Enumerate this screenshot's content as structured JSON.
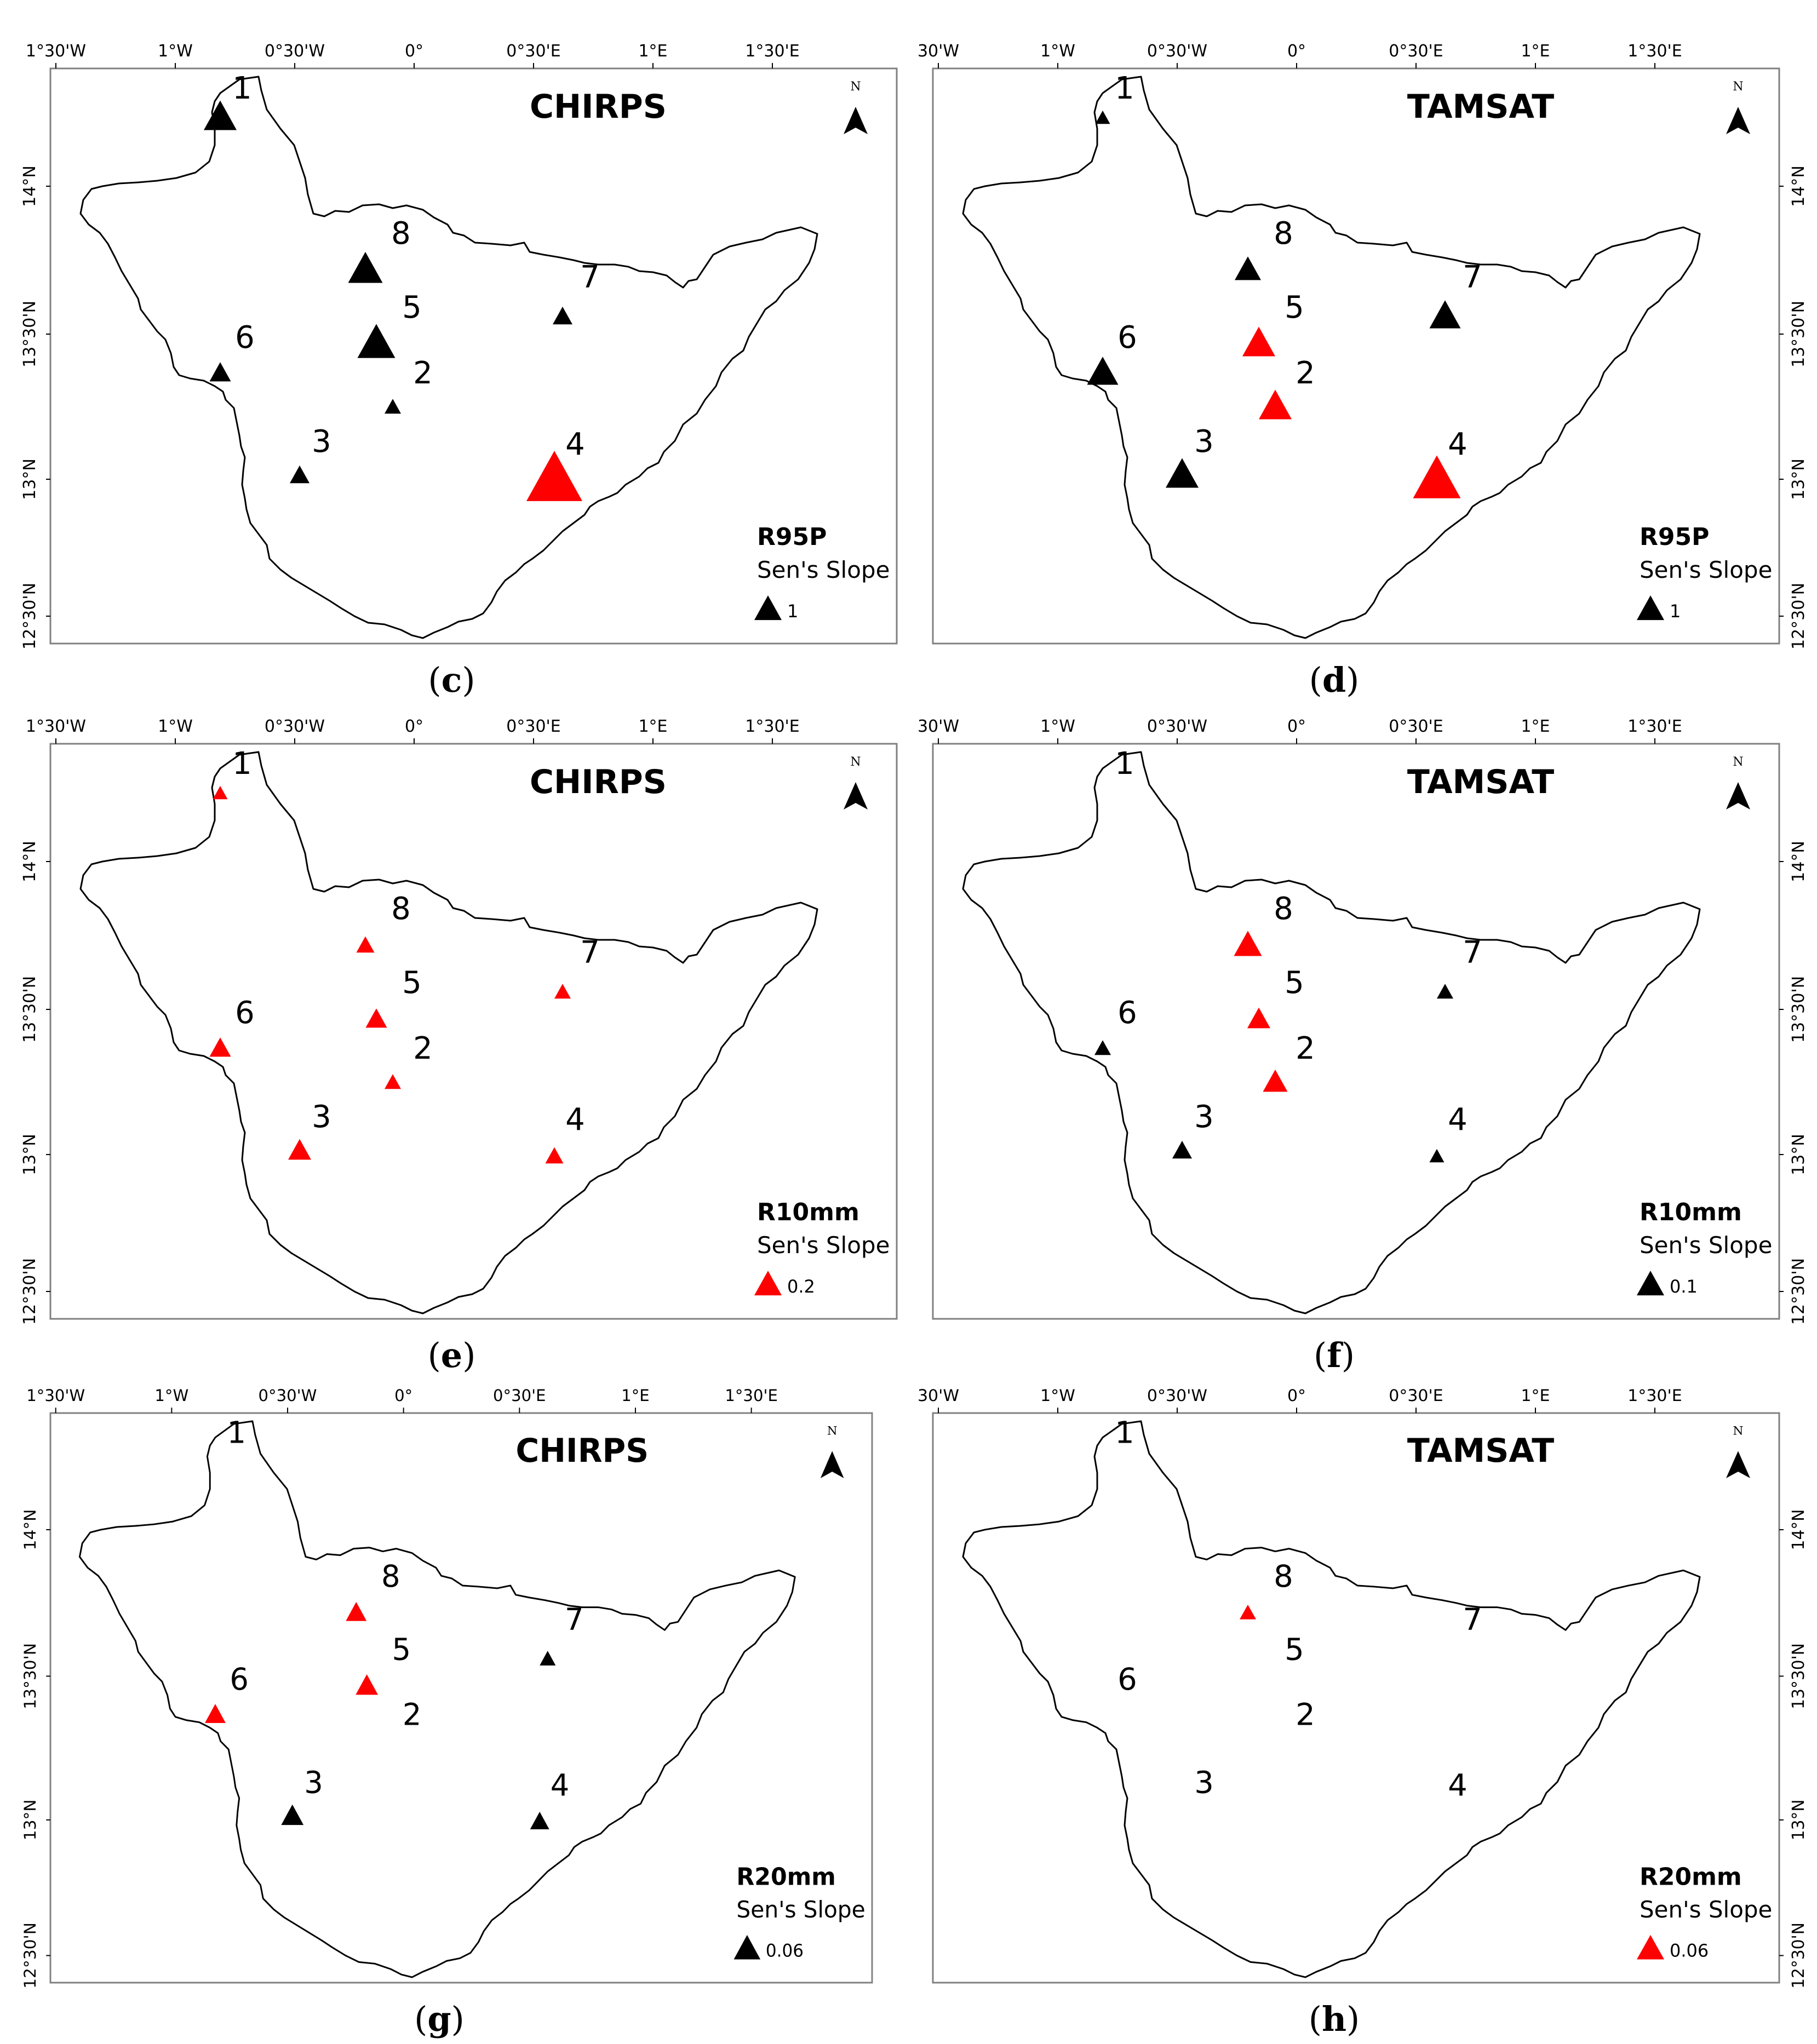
{
  "figure": {
    "legend_subtitle": "Sen's Slope",
    "north_label": "N",
    "colors": {
      "positive_trend": "#ff0000",
      "negative_trend": "#000000",
      "boundary": "#000000",
      "frame": "#808080"
    },
    "panels": [
      {
        "id": "c",
        "caption": "c",
        "dataset": "CHIRPS",
        "index": "R95P",
        "legend_value": "1",
        "legend_color": "#000000",
        "x_ticks": [
          "1°30'W",
          "1°W",
          "0°30'W",
          "0°",
          "0°30'E",
          "1°E",
          "1°30'E"
        ],
        "y_ticks": [
          "14°N",
          "13°30'N",
          "13°N",
          "12°30'N"
        ],
        "y_ticks_side": "left",
        "stations": [
          {
            "id": "1",
            "color": "#000000",
            "size": 1.0
          },
          {
            "id": "8",
            "color": "#000000",
            "size": 1.05
          },
          {
            "id": "7",
            "color": "#000000",
            "size": 0.6
          },
          {
            "id": "5",
            "color": "#000000",
            "size": 1.15
          },
          {
            "id": "6",
            "color": "#000000",
            "size": 0.65
          },
          {
            "id": "2",
            "color": "#000000",
            "size": 0.5
          },
          {
            "id": "3",
            "color": "#000000",
            "size": 0.6
          },
          {
            "id": "4",
            "color": "#ff0000",
            "size": 1.7
          }
        ]
      },
      {
        "id": "d",
        "caption": "d",
        "dataset": "TAMSAT",
        "index": "R95P",
        "legend_value": "1",
        "legend_color": "#000000",
        "x_ticks": [
          "30'W",
          "1°W",
          "0°30'W",
          "0°",
          "0°30'E",
          "1°E",
          "1°30'E"
        ],
        "y_ticks": [
          "14°N",
          "13°30'N",
          "13°N",
          "12°30'N"
        ],
        "y_ticks_side": "right",
        "stations": [
          {
            "id": "1",
            "color": "#000000",
            "size": 0.45
          },
          {
            "id": "8",
            "color": "#000000",
            "size": 0.8
          },
          {
            "id": "7",
            "color": "#000000",
            "size": 0.95
          },
          {
            "id": "5",
            "color": "#ff0000",
            "size": 1.0
          },
          {
            "id": "6",
            "color": "#000000",
            "size": 0.95
          },
          {
            "id": "2",
            "color": "#ff0000",
            "size": 1.0
          },
          {
            "id": "3",
            "color": "#000000",
            "size": 1.0
          },
          {
            "id": "4",
            "color": "#ff0000",
            "size": 1.45
          }
        ]
      },
      {
        "id": "e",
        "caption": "e",
        "dataset": "CHIRPS",
        "index": "R10mm",
        "legend_value": "0.2",
        "legend_color": "#ff0000",
        "x_ticks": [
          "1°30'W",
          "1°W",
          "0°30'W",
          "0°",
          "0°30'E",
          "1°E",
          "1°30'E"
        ],
        "y_ticks": [
          "14°N",
          "13°30'N",
          "13°N",
          "12°30'N"
        ],
        "y_ticks_side": "left",
        "stations": [
          {
            "id": "1",
            "color": "#ff0000",
            "size": 0.45
          },
          {
            "id": "8",
            "color": "#ff0000",
            "size": 0.55
          },
          {
            "id": "7",
            "color": "#ff0000",
            "size": 0.5
          },
          {
            "id": "5",
            "color": "#ff0000",
            "size": 0.65
          },
          {
            "id": "6",
            "color": "#ff0000",
            "size": 0.65
          },
          {
            "id": "2",
            "color": "#ff0000",
            "size": 0.5
          },
          {
            "id": "3",
            "color": "#ff0000",
            "size": 0.7
          },
          {
            "id": "4",
            "color": "#ff0000",
            "size": 0.55
          }
        ]
      },
      {
        "id": "f",
        "caption": "f",
        "dataset": "TAMSAT",
        "index": "R10mm",
        "legend_value": "0.1",
        "legend_color": "#000000",
        "x_ticks": [
          "30'W",
          "1°W",
          "0°30'W",
          "0°",
          "0°30'E",
          "1°E",
          "1°30'E"
        ],
        "y_ticks": [
          "14°N",
          "13°30'N",
          "13°N",
          "12°30'N"
        ],
        "y_ticks_side": "right",
        "stations": [
          {
            "id": "1",
            "color": "none",
            "size": 0
          },
          {
            "id": "8",
            "color": "#ff0000",
            "size": 0.85
          },
          {
            "id": "7",
            "color": "#000000",
            "size": 0.5
          },
          {
            "id": "5",
            "color": "#ff0000",
            "size": 0.7
          },
          {
            "id": "6",
            "color": "#000000",
            "size": 0.5
          },
          {
            "id": "2",
            "color": "#ff0000",
            "size": 0.75
          },
          {
            "id": "3",
            "color": "#000000",
            "size": 0.6
          },
          {
            "id": "4",
            "color": "#000000",
            "size": 0.45
          }
        ]
      },
      {
        "id": "g",
        "caption": "g",
        "dataset": "CHIRPS",
        "index": "R20mm",
        "legend_value": "0.06",
        "legend_color": "#000000",
        "x_ticks": [
          "1°30'W",
          "1°W",
          "0°30'W",
          "0°",
          "0°30'E",
          "1°E",
          "1°30'E"
        ],
        "y_ticks": [
          "14°N",
          "13°30'N",
          "13°N",
          "12°30'N"
        ],
        "y_ticks_side": "left",
        "stations": [
          {
            "id": "1",
            "color": "none",
            "size": 0
          },
          {
            "id": "8",
            "color": "#ff0000",
            "size": 0.65
          },
          {
            "id": "7",
            "color": "#000000",
            "size": 0.5
          },
          {
            "id": "5",
            "color": "#ff0000",
            "size": 0.7
          },
          {
            "id": "6",
            "color": "#ff0000",
            "size": 0.65
          },
          {
            "id": "2",
            "color": "none",
            "size": 0
          },
          {
            "id": "3",
            "color": "#000000",
            "size": 0.7
          },
          {
            "id": "4",
            "color": "#000000",
            "size": 0.6
          }
        ]
      },
      {
        "id": "h",
        "caption": "h",
        "dataset": "TAMSAT",
        "index": "R20mm",
        "legend_value": "0.06",
        "legend_color": "#ff0000",
        "x_ticks": [
          "30'W",
          "1°W",
          "0°30'W",
          "0°",
          "0°30'E",
          "1°E",
          "1°30'E"
        ],
        "y_ticks": [
          "14°N",
          "13°30'N",
          "13°N",
          "12°30'N"
        ],
        "y_ticks_side": "right",
        "stations": [
          {
            "id": "1",
            "color": "none",
            "size": 0
          },
          {
            "id": "8",
            "color": "#ff0000",
            "size": 0.5
          },
          {
            "id": "7",
            "color": "none",
            "size": 0
          },
          {
            "id": "5",
            "color": "none",
            "size": 0
          },
          {
            "id": "6",
            "color": "none",
            "size": 0
          },
          {
            "id": "2",
            "color": "none",
            "size": 0
          },
          {
            "id": "3",
            "color": "none",
            "size": 0
          },
          {
            "id": "4",
            "color": "none",
            "size": 0
          }
        ]
      }
    ]
  }
}
